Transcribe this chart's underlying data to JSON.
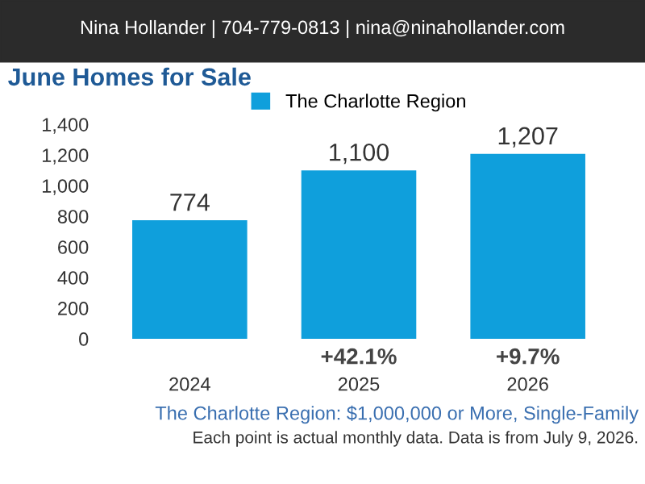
{
  "chart_data": {
    "type": "bar",
    "title": "June Homes for Sale",
    "subtitle": "Nina Hollander | 704-779-0813 | nina@ninahollander.com",
    "categories": [
      "2024",
      "2025",
      "2026"
    ],
    "series": [
      {
        "name": "The Charlotte Region",
        "color": "#0f9fdc",
        "values": [
          774,
          1100,
          1207
        ],
        "value_labels": [
          "774",
          "1,100",
          "1,207"
        ]
      }
    ],
    "ylim": [
      0,
      1400
    ],
    "yticks": [
      0,
      200,
      400,
      600,
      800,
      {
        "value": 1000,
        "label": "1,000"
      },
      {
        "value": 1200,
        "label": "1,200"
      },
      {
        "value": 1400,
        "label": "1,400"
      }
    ],
    "grid": false,
    "legend": "top",
    "annotations": [
      "+42.1%",
      "+9.7%",
      "The Charlotte Region: $1,000,000 or More, Single-Family",
      "Each point is actual monthly data. Data is from July 9, 2026."
    ]
  }
}
